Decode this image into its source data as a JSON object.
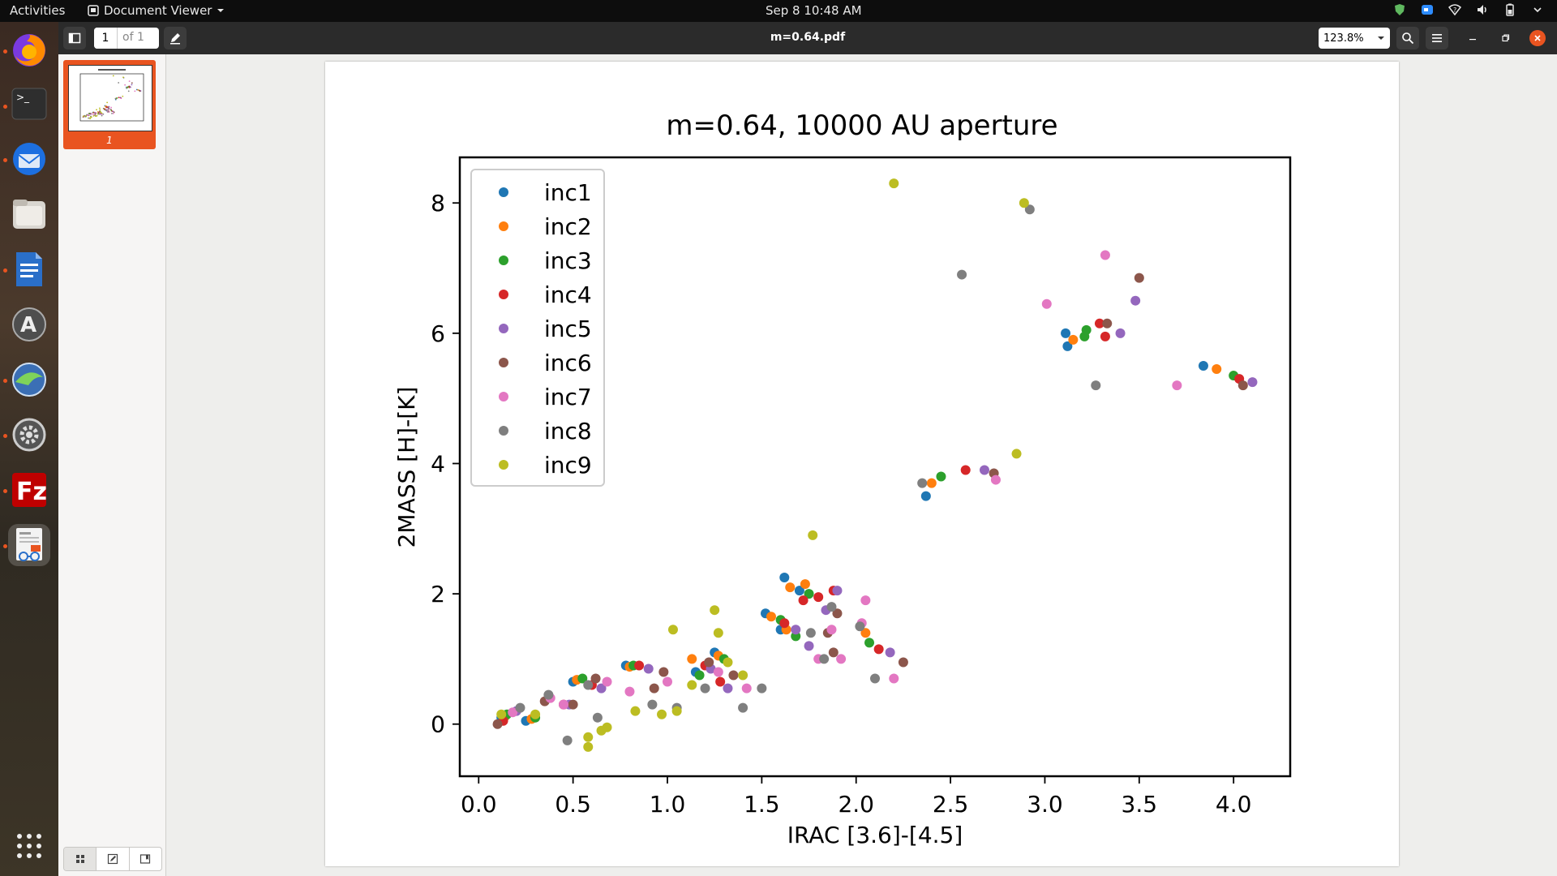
{
  "topbar": {
    "activities": "Activities",
    "app_name": "Document Viewer",
    "clock": "Sep 8  10:48 AM"
  },
  "dock": {
    "apps": [
      "firefox-icon",
      "terminal-icon",
      "thunderbird-icon",
      "files-icon",
      "libreoffice-writer-icon",
      "software-center-icon",
      "remote-desktop-icon",
      "settings-icon",
      "filezilla-icon",
      "document-viewer-icon",
      "show-apps-icon"
    ]
  },
  "header": {
    "page_current": "1",
    "page_total": "of 1",
    "title": "m=0.64.pdf",
    "zoom": "123.8%"
  },
  "sidebar": {
    "thumbnail_label": "1"
  },
  "colors": {
    "accent": "#e95420",
    "inc1": "#1f77b4",
    "inc2": "#ff7f0e",
    "inc3": "#2ca02c",
    "inc4": "#d62728",
    "inc5": "#9467bd",
    "inc6": "#8c564b",
    "inc7": "#e377c2",
    "inc8": "#7f7f7f",
    "inc9": "#bcbd22"
  },
  "chart_data": {
    "type": "scatter",
    "title": "m=0.64, 10000 AU aperture",
    "xlabel": "IRAC [3.6]-[4.5]",
    "ylabel": "2MASS [H]-[K]",
    "xlim": [
      -0.1,
      4.3
    ],
    "ylim": [
      -0.8,
      8.7
    ],
    "xticks": [
      "0.0",
      "0.5",
      "1.0",
      "1.5",
      "2.0",
      "2.5",
      "3.0",
      "3.5",
      "4.0"
    ],
    "yticks": [
      "0",
      "2",
      "4",
      "6",
      "8"
    ],
    "grid": false,
    "legend": "upper-left",
    "series": [
      {
        "name": "inc1",
        "color": "#1f77b4",
        "points": [
          [
            0.12,
            0.1
          ],
          [
            0.25,
            0.05
          ],
          [
            0.5,
            0.65
          ],
          [
            0.78,
            0.9
          ],
          [
            1.15,
            0.8
          ],
          [
            1.25,
            1.1
          ],
          [
            1.52,
            1.7
          ],
          [
            1.6,
            1.45
          ],
          [
            1.62,
            2.25
          ],
          [
            1.7,
            2.05
          ],
          [
            2.37,
            3.5
          ],
          [
            3.11,
            6.0
          ],
          [
            3.12,
            5.8
          ],
          [
            3.84,
            5.5
          ]
        ]
      },
      {
        "name": "inc2",
        "color": "#ff7f0e",
        "points": [
          [
            0.14,
            0.12
          ],
          [
            0.28,
            0.08
          ],
          [
            0.52,
            0.68
          ],
          [
            0.8,
            0.88
          ],
          [
            1.13,
            1.0
          ],
          [
            1.27,
            1.05
          ],
          [
            1.55,
            1.65
          ],
          [
            1.63,
            1.45
          ],
          [
            1.65,
            2.1
          ],
          [
            1.73,
            2.15
          ],
          [
            2.05,
            1.4
          ],
          [
            2.4,
            3.7
          ],
          [
            3.15,
            5.9
          ],
          [
            3.91,
            5.45
          ]
        ]
      },
      {
        "name": "inc3",
        "color": "#2ca02c",
        "points": [
          [
            0.15,
            0.15
          ],
          [
            0.3,
            0.1
          ],
          [
            0.55,
            0.7
          ],
          [
            0.82,
            0.9
          ],
          [
            1.17,
            0.75
          ],
          [
            1.3,
            1.0
          ],
          [
            1.6,
            1.6
          ],
          [
            1.68,
            1.35
          ],
          [
            1.75,
            2.0
          ],
          [
            2.07,
            1.25
          ],
          [
            2.45,
            3.8
          ],
          [
            3.21,
            5.95
          ],
          [
            3.22,
            6.05
          ],
          [
            4.0,
            5.35
          ]
        ]
      },
      {
        "name": "inc4",
        "color": "#d62728",
        "points": [
          [
            0.13,
            0.05
          ],
          [
            0.45,
            0.3
          ],
          [
            0.6,
            0.6
          ],
          [
            0.85,
            0.9
          ],
          [
            1.2,
            0.9
          ],
          [
            1.28,
            0.65
          ],
          [
            1.62,
            1.55
          ],
          [
            1.72,
            1.9
          ],
          [
            1.8,
            1.95
          ],
          [
            1.88,
            2.05
          ],
          [
            2.12,
            1.15
          ],
          [
            2.58,
            3.9
          ],
          [
            3.29,
            6.15
          ],
          [
            3.32,
            5.95
          ],
          [
            4.03,
            5.3
          ]
        ]
      },
      {
        "name": "inc5",
        "color": "#9467bd",
        "points": [
          [
            0.2,
            0.2
          ],
          [
            0.48,
            0.3
          ],
          [
            0.65,
            0.55
          ],
          [
            0.9,
            0.85
          ],
          [
            1.23,
            0.85
          ],
          [
            1.32,
            0.55
          ],
          [
            1.68,
            1.45
          ],
          [
            1.75,
            1.2
          ],
          [
            1.84,
            1.75
          ],
          [
            1.9,
            2.05
          ],
          [
            2.18,
            1.1
          ],
          [
            2.68,
            3.9
          ],
          [
            3.4,
            6.0
          ],
          [
            3.48,
            6.5
          ],
          [
            4.1,
            5.25
          ]
        ]
      },
      {
        "name": "inc6",
        "color": "#8c564b",
        "points": [
          [
            0.1,
            0.0
          ],
          [
            0.35,
            0.35
          ],
          [
            0.5,
            0.3
          ],
          [
            0.62,
            0.7
          ],
          [
            0.93,
            0.55
          ],
          [
            0.98,
            0.8
          ],
          [
            1.22,
            0.95
          ],
          [
            1.35,
            0.75
          ],
          [
            1.85,
            1.4
          ],
          [
            1.88,
            1.1
          ],
          [
            1.9,
            1.7
          ],
          [
            2.25,
            0.95
          ],
          [
            2.73,
            3.85
          ],
          [
            3.33,
            6.15
          ],
          [
            3.5,
            6.85
          ],
          [
            4.05,
            5.2
          ]
        ]
      },
      {
        "name": "inc7",
        "color": "#e377c2",
        "points": [
          [
            0.18,
            0.18
          ],
          [
            0.38,
            0.4
          ],
          [
            0.45,
            0.3
          ],
          [
            0.68,
            0.65
          ],
          [
            0.8,
            0.5
          ],
          [
            1.0,
            0.65
          ],
          [
            1.27,
            0.8
          ],
          [
            1.42,
            0.55
          ],
          [
            1.8,
            1.0
          ],
          [
            1.87,
            1.45
          ],
          [
            1.92,
            1.0
          ],
          [
            2.03,
            1.55
          ],
          [
            2.05,
            1.9
          ],
          [
            2.2,
            0.7
          ],
          [
            2.74,
            3.75
          ],
          [
            3.01,
            6.45
          ],
          [
            3.32,
            7.2
          ],
          [
            3.7,
            5.2
          ]
        ]
      },
      {
        "name": "inc8",
        "color": "#7f7f7f",
        "points": [
          [
            0.22,
            0.25
          ],
          [
            0.37,
            0.45
          ],
          [
            0.47,
            -0.25
          ],
          [
            0.58,
            0.6
          ],
          [
            0.63,
            0.1
          ],
          [
            0.92,
            0.3
          ],
          [
            1.05,
            0.25
          ],
          [
            1.2,
            0.55
          ],
          [
            1.4,
            0.25
          ],
          [
            1.5,
            0.55
          ],
          [
            1.76,
            1.4
          ],
          [
            1.83,
            1.0
          ],
          [
            1.87,
            1.8
          ],
          [
            2.02,
            1.5
          ],
          [
            2.1,
            0.7
          ],
          [
            2.35,
            3.7
          ],
          [
            2.56,
            6.9
          ],
          [
            2.92,
            7.9
          ],
          [
            3.27,
            5.2
          ]
        ]
      },
      {
        "name": "inc9",
        "color": "#bcbd22",
        "points": [
          [
            0.12,
            0.15
          ],
          [
            0.3,
            0.15
          ],
          [
            0.58,
            -0.2
          ],
          [
            0.58,
            -0.35
          ],
          [
            0.65,
            -0.1
          ],
          [
            0.68,
            -0.05
          ],
          [
            0.83,
            0.2
          ],
          [
            0.97,
            0.15
          ],
          [
            1.03,
            1.45
          ],
          [
            1.05,
            0.2
          ],
          [
            1.13,
            0.6
          ],
          [
            1.25,
            1.75
          ],
          [
            1.27,
            1.4
          ],
          [
            1.32,
            0.95
          ],
          [
            1.4,
            0.75
          ],
          [
            1.77,
            2.9
          ],
          [
            2.2,
            8.3
          ],
          [
            2.85,
            4.15
          ],
          [
            2.89,
            8.0
          ]
        ]
      }
    ]
  }
}
